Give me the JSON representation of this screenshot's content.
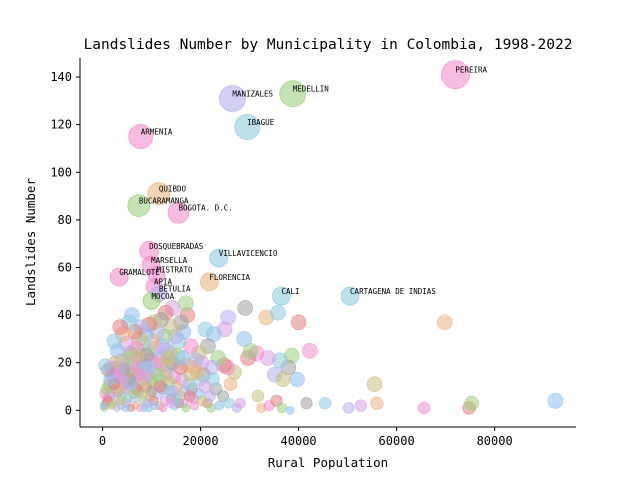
{
  "chart_data": {
    "type": "scatter",
    "title": "Landslides Number by Municipality in Colombia, 1998-2022",
    "xlabel": "Rural Population",
    "ylabel": "Landslides Number",
    "xlim": [
      -4600,
      96600
    ],
    "ylim": [
      -7,
      148
    ],
    "xticks": [
      0,
      20000,
      40000,
      60000,
      80000
    ],
    "xtick_labels": [
      "0",
      "20000",
      "40000",
      "60000",
      "80000"
    ],
    "yticks": [
      0,
      20,
      40,
      60,
      80,
      100,
      120,
      140
    ],
    "ytick_labels": [
      "0",
      "20",
      "40",
      "60",
      "80",
      "100",
      "120",
      "140"
    ],
    "grid": false,
    "palette": [
      "#f48fcf",
      "#8fc0f0",
      "#b5b0f0",
      "#e9b582",
      "#9ed081",
      "#8fcbe0",
      "#c8c080",
      "#e07f7f",
      "#a0a0a0",
      "#d8a0e8"
    ],
    "labeled_points": [
      {
        "label": "PEREIRA",
        "x": 72000,
        "y": 141,
        "color": "#f48fcf",
        "size": 14
      },
      {
        "label": "MEDELLIN",
        "x": 38800,
        "y": 133,
        "color": "#9ed081",
        "size": 13
      },
      {
        "label": "MANIZALES",
        "x": 26500,
        "y": 131,
        "color": "#b5b0f0",
        "size": 13
      },
      {
        "label": "IBAGUE",
        "x": 29500,
        "y": 119,
        "color": "#8fcbe0",
        "size": 12.5
      },
      {
        "label": "ARMENIA",
        "x": 7800,
        "y": 115,
        "color": "#f48fcf",
        "size": 12
      },
      {
        "label": "QUIBDO",
        "x": 11500,
        "y": 91,
        "color": "#e9b582",
        "size": 11
      },
      {
        "label": "BUCARAMANGA",
        "x": 7400,
        "y": 86,
        "color": "#9ed081",
        "size": 11
      },
      {
        "label": "BOGOTA. D.C.",
        "x": 15500,
        "y": 83,
        "color": "#f48fcf",
        "size": 10.5
      },
      {
        "label": "DOSQUEBRADAS",
        "x": 9500,
        "y": 67,
        "color": "#f48fcf",
        "size": 9.5
      },
      {
        "label": "VILLAVICENCIO",
        "x": 23700,
        "y": 64,
        "color": "#8fcbe0",
        "size": 9
      },
      {
        "label": "MARSELLA",
        "x": 9900,
        "y": 61,
        "color": "#f48fcf",
        "size": 9
      },
      {
        "label": "GRAMALOTE",
        "x": 3400,
        "y": 56,
        "color": "#f48fcf",
        "size": 9
      },
      {
        "label": "MISTRATO",
        "x": 11000,
        "y": 57,
        "color": "#f48fcf",
        "size": 8.5
      },
      {
        "label": "FLORENCIA",
        "x": 21800,
        "y": 54,
        "color": "#e9b582",
        "size": 9
      },
      {
        "label": "APIA",
        "x": 10500,
        "y": 52,
        "color": "#f48fcf",
        "size": 8
      },
      {
        "label": "BETULIA",
        "x": 11500,
        "y": 49,
        "color": "#b5b0f0",
        "size": 8
      },
      {
        "label": "CALI",
        "x": 36500,
        "y": 48,
        "color": "#8fcbe0",
        "size": 9
      },
      {
        "label": "CARTAGENA DE INDIAS",
        "x": 50500,
        "y": 48,
        "color": "#8fcbe0",
        "size": 9
      },
      {
        "label": "MOCOA",
        "x": 10000,
        "y": 46,
        "color": "#9ed081",
        "size": 8.5
      }
    ],
    "points": [
      [
        69800,
        37
      ],
      [
        42300,
        25
      ],
      [
        40000,
        37
      ],
      [
        38600,
        23
      ],
      [
        39700,
        13
      ],
      [
        37900,
        18
      ],
      [
        36200,
        21
      ],
      [
        35100,
        15
      ],
      [
        33700,
        22
      ],
      [
        36800,
        13
      ],
      [
        33400,
        39
      ],
      [
        31400,
        24
      ],
      [
        29700,
        22
      ],
      [
        30200,
        25
      ],
      [
        28900,
        30
      ],
      [
        29100,
        43
      ],
      [
        35800,
        41
      ],
      [
        25600,
        39
      ],
      [
        24900,
        34
      ],
      [
        26900,
        16
      ],
      [
        26100,
        11
      ],
      [
        25500,
        18
      ],
      [
        24800,
        19
      ],
      [
        23600,
        22
      ],
      [
        22700,
        32
      ],
      [
        21500,
        27
      ],
      [
        21000,
        34
      ],
      [
        22300,
        18
      ],
      [
        20200,
        20
      ],
      [
        19700,
        24
      ],
      [
        18800,
        18
      ],
      [
        18000,
        27
      ],
      [
        17300,
        40
      ],
      [
        17000,
        45
      ],
      [
        16500,
        33
      ],
      [
        16000,
        37
      ],
      [
        15500,
        29
      ],
      [
        14900,
        31
      ],
      [
        14300,
        43
      ],
      [
        14100,
        35
      ],
      [
        13800,
        24
      ],
      [
        13300,
        19
      ],
      [
        12900,
        41
      ],
      [
        12600,
        31
      ],
      [
        12200,
        27
      ],
      [
        11900,
        38
      ],
      [
        11500,
        22
      ],
      [
        11100,
        33
      ],
      [
        10800,
        26
      ],
      [
        10500,
        37
      ],
      [
        10100,
        29
      ],
      [
        9800,
        21
      ],
      [
        9500,
        36
      ],
      [
        9200,
        24
      ],
      [
        8900,
        32
      ],
      [
        8600,
        19
      ],
      [
        8300,
        28
      ],
      [
        8000,
        35
      ],
      [
        7800,
        22
      ],
      [
        7500,
        30
      ],
      [
        7200,
        17
      ],
      [
        6900,
        26
      ],
      [
        6600,
        33
      ],
      [
        6300,
        14
      ],
      [
        6000,
        40
      ],
      [
        5700,
        24
      ],
      [
        5400,
        37
      ],
      [
        5100,
        19
      ],
      [
        4800,
        28
      ],
      [
        4500,
        15
      ],
      [
        4200,
        32
      ],
      [
        3900,
        21
      ],
      [
        3600,
        35
      ],
      [
        3300,
        12
      ],
      [
        3000,
        25
      ],
      [
        2700,
        18
      ],
      [
        2400,
        29
      ],
      [
        2100,
        9
      ],
      [
        1800,
        15
      ],
      [
        1500,
        7
      ],
      [
        1200,
        11
      ],
      [
        900,
        5
      ],
      [
        600,
        3
      ],
      [
        300,
        1
      ],
      [
        19500,
        7
      ],
      [
        18200,
        9
      ],
      [
        17600,
        11
      ],
      [
        16800,
        8
      ],
      [
        16200,
        13
      ],
      [
        15800,
        6
      ],
      [
        15100,
        10
      ],
      [
        14600,
        14
      ],
      [
        14000,
        5
      ],
      [
        13500,
        12
      ],
      [
        13000,
        16
      ],
      [
        12400,
        9
      ],
      [
        11800,
        13
      ],
      [
        11300,
        7
      ],
      [
        10700,
        17
      ],
      [
        10200,
        11
      ],
      [
        9700,
        6
      ],
      [
        9300,
        15
      ],
      [
        8800,
        10
      ],
      [
        8400,
        4
      ],
      [
        7900,
        13
      ],
      [
        7400,
        8
      ],
      [
        7000,
        18
      ],
      [
        6500,
        5
      ],
      [
        6100,
        12
      ],
      [
        5600,
        16
      ],
      [
        5200,
        9
      ],
      [
        4900,
        3
      ],
      [
        4400,
        11
      ],
      [
        4000,
        6
      ],
      [
        3500,
        14
      ],
      [
        3100,
        8
      ],
      [
        2600,
        4
      ],
      [
        2200,
        13
      ],
      [
        1700,
        6
      ],
      [
        1300,
        10
      ],
      [
        800,
        2
      ],
      [
        400,
        7
      ],
      [
        21400,
        3
      ],
      [
        22200,
        1
      ],
      [
        23800,
        2
      ],
      [
        24600,
        6
      ],
      [
        25800,
        3
      ],
      [
        27400,
        1
      ],
      [
        28100,
        3
      ],
      [
        31700,
        6
      ],
      [
        32400,
        1
      ],
      [
        34000,
        2
      ],
      [
        35500,
        4
      ],
      [
        36600,
        1
      ],
      [
        38300,
        0
      ],
      [
        41600,
        3
      ],
      [
        45400,
        3
      ],
      [
        50200,
        1
      ],
      [
        52700,
        2
      ],
      [
        55500,
        11
      ],
      [
        56000,
        3
      ],
      [
        65600,
        1
      ],
      [
        74800,
        1
      ],
      [
        75300,
        3
      ],
      [
        92400,
        4
      ],
      [
        20600,
        15
      ],
      [
        19900,
        13
      ],
      [
        19100,
        21
      ],
      [
        18500,
        5
      ],
      [
        17900,
        15
      ],
      [
        17200,
        19
      ],
      [
        16600,
        3
      ],
      [
        15900,
        18
      ],
      [
        15300,
        23
      ],
      [
        14700,
        2
      ],
      [
        14200,
        20
      ],
      [
        13700,
        8
      ],
      [
        13100,
        25
      ],
      [
        12700,
        4
      ],
      [
        12100,
        19
      ],
      [
        11600,
        2
      ],
      [
        11000,
        20
      ],
      [
        10400,
        4
      ],
      [
        9900,
        13
      ],
      [
        9400,
        1
      ],
      [
        8900,
        23
      ],
      [
        8500,
        1
      ],
      [
        8100,
        18
      ],
      [
        7600,
        1
      ],
      [
        7100,
        23
      ],
      [
        6700,
        2
      ],
      [
        6200,
        20
      ],
      [
        5800,
        1
      ],
      [
        5300,
        22
      ],
      [
        4700,
        1
      ],
      [
        4300,
        17
      ],
      [
        3800,
        2
      ],
      [
        3400,
        18
      ],
      [
        2900,
        1
      ],
      [
        2500,
        20
      ],
      [
        2000,
        3
      ],
      [
        1600,
        18
      ],
      [
        1100,
        4
      ],
      [
        700,
        9
      ],
      [
        200,
        2
      ],
      [
        23100,
        9
      ],
      [
        22500,
        13
      ],
      [
        21900,
        6
      ],
      [
        20900,
        10
      ],
      [
        20300,
        4
      ],
      [
        19300,
        16
      ],
      [
        18700,
        2
      ],
      [
        17800,
        6
      ],
      [
        17000,
        1
      ],
      [
        16400,
        22
      ],
      [
        15600,
        3
      ],
      [
        15000,
        5
      ],
      [
        14400,
        8
      ],
      [
        13900,
        3
      ],
      [
        13400,
        22
      ],
      [
        12800,
        14
      ],
      [
        12300,
        1
      ],
      [
        11700,
        10
      ],
      [
        11200,
        15
      ],
      [
        10600,
        2
      ],
      [
        10000,
        8
      ],
      [
        9600,
        18
      ],
      [
        9100,
        3
      ],
      [
        8700,
        14
      ],
      [
        8200,
        7
      ],
      [
        7700,
        11
      ],
      [
        7300,
        15
      ],
      [
        6800,
        9
      ],
      [
        6400,
        7
      ],
      [
        5900,
        11
      ],
      [
        5500,
        13
      ],
      [
        5000,
        5
      ],
      [
        4600,
        9
      ],
      [
        4100,
        13
      ],
      [
        3700,
        4
      ],
      [
        3200,
        9
      ],
      [
        2800,
        15
      ],
      [
        2300,
        11
      ],
      [
        1900,
        2
      ],
      [
        1400,
        13
      ],
      [
        1000,
        17
      ],
      [
        500,
        19
      ]
    ]
  }
}
